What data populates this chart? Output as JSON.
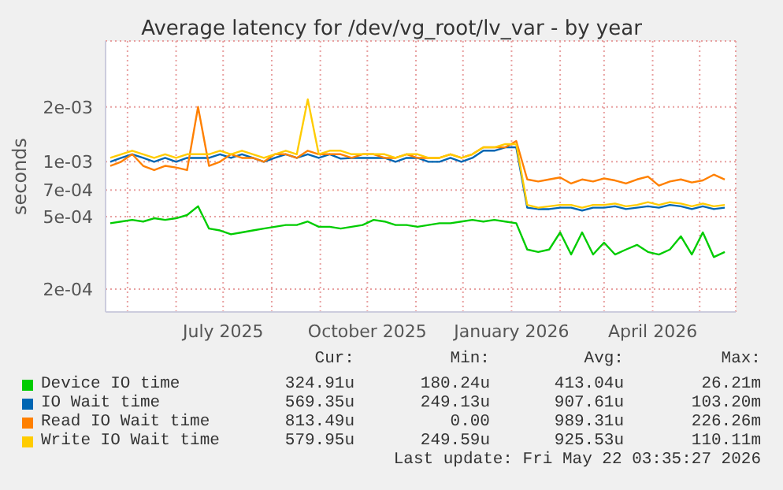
{
  "chart_data": {
    "type": "line",
    "title": "Average latency for /dev/vg_root/lv_var - by year",
    "ylabel": "seconds",
    "x": [
      "2025-04-20",
      "2025-04-27",
      "2025-05-04",
      "2025-05-11",
      "2025-05-18",
      "2025-05-25",
      "2025-06-01",
      "2025-06-08",
      "2025-06-15",
      "2025-06-22",
      "2025-06-29",
      "2025-07-06",
      "2025-07-13",
      "2025-07-20",
      "2025-07-27",
      "2025-08-03",
      "2025-08-10",
      "2025-08-17",
      "2025-08-24",
      "2025-08-31",
      "2025-09-07",
      "2025-09-14",
      "2025-09-21",
      "2025-09-28",
      "2025-10-05",
      "2025-10-12",
      "2025-10-19",
      "2025-10-26",
      "2025-11-02",
      "2025-11-09",
      "2025-11-16",
      "2025-11-23",
      "2025-11-30",
      "2025-12-07",
      "2025-12-14",
      "2025-12-21",
      "2025-12-28",
      "2026-01-04",
      "2026-01-11",
      "2026-01-18",
      "2026-01-25",
      "2026-02-01",
      "2026-02-08",
      "2026-02-15",
      "2026-02-22",
      "2026-03-01",
      "2026-03-08",
      "2026-03-15",
      "2026-03-22",
      "2026-03-29",
      "2026-04-05",
      "2026-04-12",
      "2026-04-19",
      "2026-04-26",
      "2026-05-03",
      "2026-05-10",
      "2026-05-17"
    ],
    "series": [
      {
        "name": "Device IO time",
        "color": "#00cc00",
        "values": [
          0.00046,
          0.00047,
          0.00048,
          0.00047,
          0.00049,
          0.00048,
          0.00049,
          0.00051,
          0.00057,
          0.00043,
          0.00042,
          0.0004,
          0.00041,
          0.00042,
          0.00043,
          0.00044,
          0.00045,
          0.00045,
          0.00047,
          0.00044,
          0.00044,
          0.00043,
          0.00044,
          0.00045,
          0.00048,
          0.00047,
          0.00045,
          0.00045,
          0.00044,
          0.00045,
          0.00046,
          0.00046,
          0.00047,
          0.00048,
          0.00047,
          0.00048,
          0.00047,
          0.00046,
          0.00033,
          0.00032,
          0.00033,
          0.00041,
          0.00031,
          0.00041,
          0.00031,
          0.00036,
          0.00031,
          0.00033,
          0.00035,
          0.00032,
          0.00031,
          0.00033,
          0.00039,
          0.00031,
          0.00041,
          0.0003,
          0.00032
        ]
      },
      {
        "name": "IO Wait time",
        "color": "#0066b3",
        "values": [
          0.001,
          0.00105,
          0.0011,
          0.00105,
          0.001,
          0.00105,
          0.001,
          0.00105,
          0.00105,
          0.00105,
          0.0011,
          0.00105,
          0.0011,
          0.00105,
          0.001,
          0.00105,
          0.0011,
          0.00105,
          0.0011,
          0.00105,
          0.0011,
          0.00104,
          0.00105,
          0.00105,
          0.00105,
          0.00105,
          0.001,
          0.00105,
          0.00105,
          0.001,
          0.001,
          0.00105,
          0.001,
          0.00105,
          0.00115,
          0.00115,
          0.0012,
          0.0012,
          0.00056,
          0.00055,
          0.00055,
          0.00056,
          0.00056,
          0.00054,
          0.00056,
          0.00056,
          0.00057,
          0.00055,
          0.00056,
          0.00057,
          0.00056,
          0.00058,
          0.00057,
          0.00055,
          0.00057,
          0.00055,
          0.00056
        ]
      },
      {
        "name": "Read IO Wait time",
        "color": "#ff8000",
        "values": [
          0.00095,
          0.001,
          0.0011,
          0.00095,
          0.0009,
          0.00095,
          0.00093,
          0.0009,
          0.002,
          0.00095,
          0.001,
          0.0011,
          0.00105,
          0.00105,
          0.001,
          0.0011,
          0.0011,
          0.00105,
          0.00115,
          0.0011,
          0.0011,
          0.0011,
          0.00105,
          0.0011,
          0.0011,
          0.00105,
          0.00105,
          0.0011,
          0.00105,
          0.00105,
          0.00105,
          0.0011,
          0.00105,
          0.0011,
          0.0012,
          0.0012,
          0.0012,
          0.0013,
          0.0008,
          0.00078,
          0.0008,
          0.00082,
          0.00076,
          0.0008,
          0.00078,
          0.00081,
          0.00079,
          0.00076,
          0.0008,
          0.00083,
          0.00074,
          0.00078,
          0.0008,
          0.00077,
          0.00079,
          0.00085,
          0.0008
        ]
      },
      {
        "name": "Write IO Wait time",
        "color": "#ffcc00",
        "values": [
          0.00105,
          0.0011,
          0.00115,
          0.0011,
          0.00105,
          0.0011,
          0.00105,
          0.0011,
          0.0011,
          0.0011,
          0.00115,
          0.0011,
          0.00115,
          0.0011,
          0.00105,
          0.0011,
          0.00115,
          0.0011,
          0.0022,
          0.0011,
          0.00115,
          0.00115,
          0.0011,
          0.0011,
          0.0011,
          0.0011,
          0.00105,
          0.0011,
          0.0011,
          0.00105,
          0.00105,
          0.0011,
          0.00105,
          0.0011,
          0.0012,
          0.0012,
          0.00125,
          0.00125,
          0.00058,
          0.00056,
          0.00057,
          0.00058,
          0.00058,
          0.00056,
          0.00058,
          0.00058,
          0.00059,
          0.00057,
          0.00058,
          0.0006,
          0.00058,
          0.0006,
          0.00059,
          0.00057,
          0.00059,
          0.00057,
          0.00058
        ]
      }
    ],
    "xlim": [
      "2025-04-17",
      "2026-05-24"
    ],
    "xticks": [
      {
        "value": "2025-05-01",
        "label": null
      },
      {
        "value": "2025-06-01",
        "label": null
      },
      {
        "value": "2025-07-01",
        "label": "July 2025"
      },
      {
        "value": "2025-08-01",
        "label": null
      },
      {
        "value": "2025-09-01",
        "label": null
      },
      {
        "value": "2025-10-01",
        "label": "October 2025"
      },
      {
        "value": "2025-11-01",
        "label": null
      },
      {
        "value": "2025-12-01",
        "label": null
      },
      {
        "value": "2026-01-01",
        "label": "January 2026"
      },
      {
        "value": "2026-02-01",
        "label": null
      },
      {
        "value": "2026-03-01",
        "label": null
      },
      {
        "value": "2026-04-01",
        "label": "April 2026"
      },
      {
        "value": "2026-05-01",
        "label": null
      }
    ],
    "ylim": [
      0.00015,
      0.0046
    ],
    "yticks": [
      {
        "value": 0.0002,
        "label": "2e-04"
      },
      {
        "value": 0.0005,
        "label": "5e-04"
      },
      {
        "value": 0.0007,
        "label": "7e-04"
      },
      {
        "value": 0.001,
        "label": "1e-03"
      },
      {
        "value": 0.002,
        "label": "2e-03"
      }
    ],
    "log": true,
    "grid": true,
    "legend": "bottom",
    "marker": "none",
    "line_style": "solid",
    "annotations": [
      "Cur:",
      "Min:",
      "Avg:",
      "Max:",
      "324.91u",
      "180.24u",
      "413.04u",
      "26.21m",
      "569.35u",
      "249.13u",
      "907.61u",
      "103.20m",
      "813.49u",
      "0.00",
      "989.31u",
      "226.26m",
      "579.95u",
      "249.59u",
      "925.53u",
      "110.11m",
      "Last update: Fri May 22 03:35:27 2026"
    ]
  }
}
